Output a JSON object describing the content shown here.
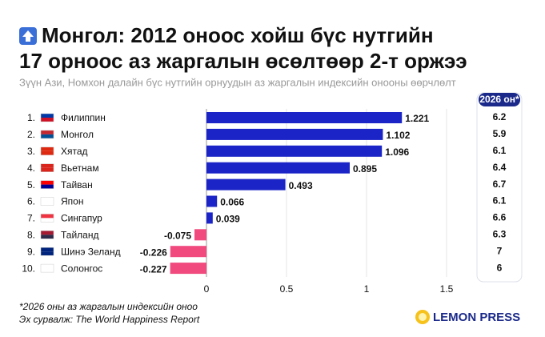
{
  "chart_data": {
    "type": "bar",
    "orientation": "horizontal",
    "title_lines": [
      "Монгол: 2012 оноос хойш бүс нутгийн",
      "17 орноос аз жаргалын өсөлтөөр 2-т оржээ"
    ],
    "subtitle": "Зүүн Ази, Номхон далайн бүс нутгийн орнуудын аз жаргалын индексийн онооны өөрчлөлт",
    "ranks": [
      "1.",
      "2.",
      "3.",
      "4.",
      "5.",
      "6.",
      "7.",
      "8.",
      "9.",
      "10."
    ],
    "categories": [
      "Филиппин",
      "Монгол",
      "Хятад",
      "Вьетнам",
      "Тайван",
      "Япон",
      "Сингапур",
      "Тайланд",
      "Шинэ Зеланд",
      "Солонгос"
    ],
    "values": [
      1.221,
      1.102,
      1.096,
      0.895,
      0.493,
      0.066,
      0.039,
      -0.075,
      -0.226,
      -0.227
    ],
    "color": "#1b24c6",
    "negative_color": "#f04a7e",
    "xlim": [
      -0.3,
      1.6
    ],
    "xticks": [
      0,
      0.5,
      1,
      1.5
    ],
    "grid": true,
    "score_header": "2026 он*",
    "scores": [
      6.2,
      5.9,
      6.1,
      6.4,
      6.7,
      6.1,
      6.6,
      6.3,
      7,
      6
    ],
    "notes": [
      "*2026 оны аз жаргалын индексийн оноо",
      "Эх сурвалж: The World Happiness Report"
    ],
    "brand": "LEMON PRESS"
  }
}
